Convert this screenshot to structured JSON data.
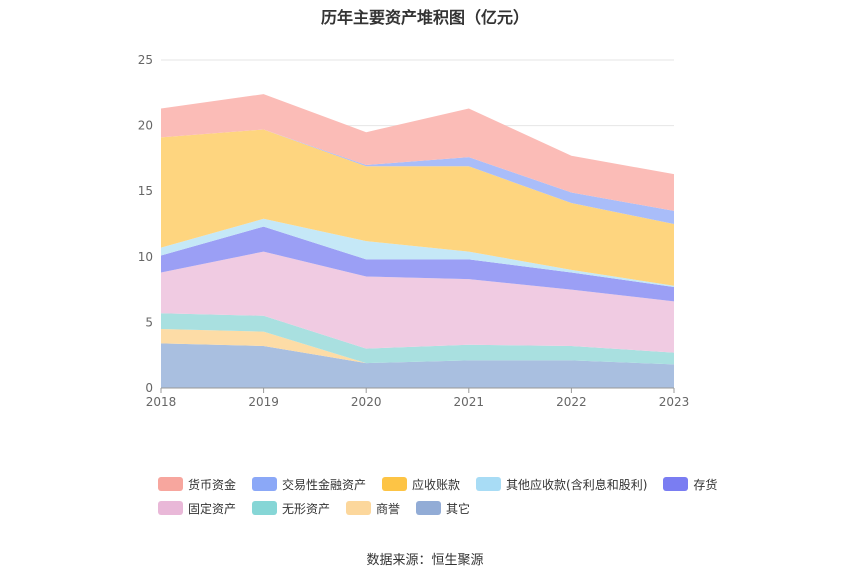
{
  "source_label": "数据来源：恒生聚源",
  "chart_data": {
    "type": "area",
    "stacked": true,
    "title": "历年主要资产堆积图（亿元）",
    "xlabel": "",
    "ylabel": "",
    "ylim": [
      0,
      25
    ],
    "yticks": [
      0,
      5,
      10,
      15,
      20,
      25
    ],
    "x": [
      "2018",
      "2019",
      "2020",
      "2021",
      "2022",
      "2023"
    ],
    "grid": true,
    "legend_position": "bottom",
    "series": [
      {
        "name": "其它",
        "color": "#a9bfe0",
        "values": [
          3.4,
          3.2,
          1.9,
          2.1,
          2.1,
          1.8
        ]
      },
      {
        "name": "商誉",
        "color": "#fddca6",
        "values": [
          1.1,
          1.1,
          0.0,
          0.0,
          0.0,
          0.0
        ]
      },
      {
        "name": "无形资产",
        "color": "#a9e0e0",
        "values": [
          1.2,
          1.2,
          1.1,
          1.2,
          1.1,
          0.9
        ]
      },
      {
        "name": "固定资产",
        "color": "#f0cbe2",
        "values": [
          3.1,
          4.9,
          5.5,
          5.0,
          4.3,
          3.9
        ]
      },
      {
        "name": "存货",
        "color": "#9b9ff5",
        "values": [
          1.3,
          1.9,
          1.3,
          1.5,
          1.3,
          1.1
        ]
      },
      {
        "name": "其他应收款(含利息和股利)",
        "color": "#c5e8f7",
        "values": [
          0.6,
          0.6,
          1.4,
          0.6,
          0.2,
          0.1
        ]
      },
      {
        "name": "应收账款",
        "color": "#fed57f",
        "values": [
          8.4,
          6.8,
          5.7,
          6.5,
          5.1,
          4.7
        ]
      },
      {
        "name": "交易性金融资产",
        "color": "#a9bdf9",
        "values": [
          0.0,
          0.0,
          0.1,
          0.7,
          0.8,
          1.0
        ]
      },
      {
        "name": "货币资金",
        "color": "#fbbcb7",
        "values": [
          2.2,
          2.7,
          2.5,
          3.7,
          2.8,
          2.8
        ]
      }
    ],
    "legend": [
      {
        "name": "货币资金",
        "color": "#f7a69e"
      },
      {
        "name": "交易性金融资产",
        "color": "#8ba8f7"
      },
      {
        "name": "应收账款",
        "color": "#fdc445"
      },
      {
        "name": "其他应收款(含利息和股利)",
        "color": "#a8dcf5"
      },
      {
        "name": "存货",
        "color": "#7a7df2"
      },
      {
        "name": "固定资产",
        "color": "#e9b8d8"
      },
      {
        "name": "无形资产",
        "color": "#86d6d6"
      },
      {
        "name": "商誉",
        "color": "#fcd79c"
      },
      {
        "name": "其它",
        "color": "#92acd6"
      }
    ]
  }
}
